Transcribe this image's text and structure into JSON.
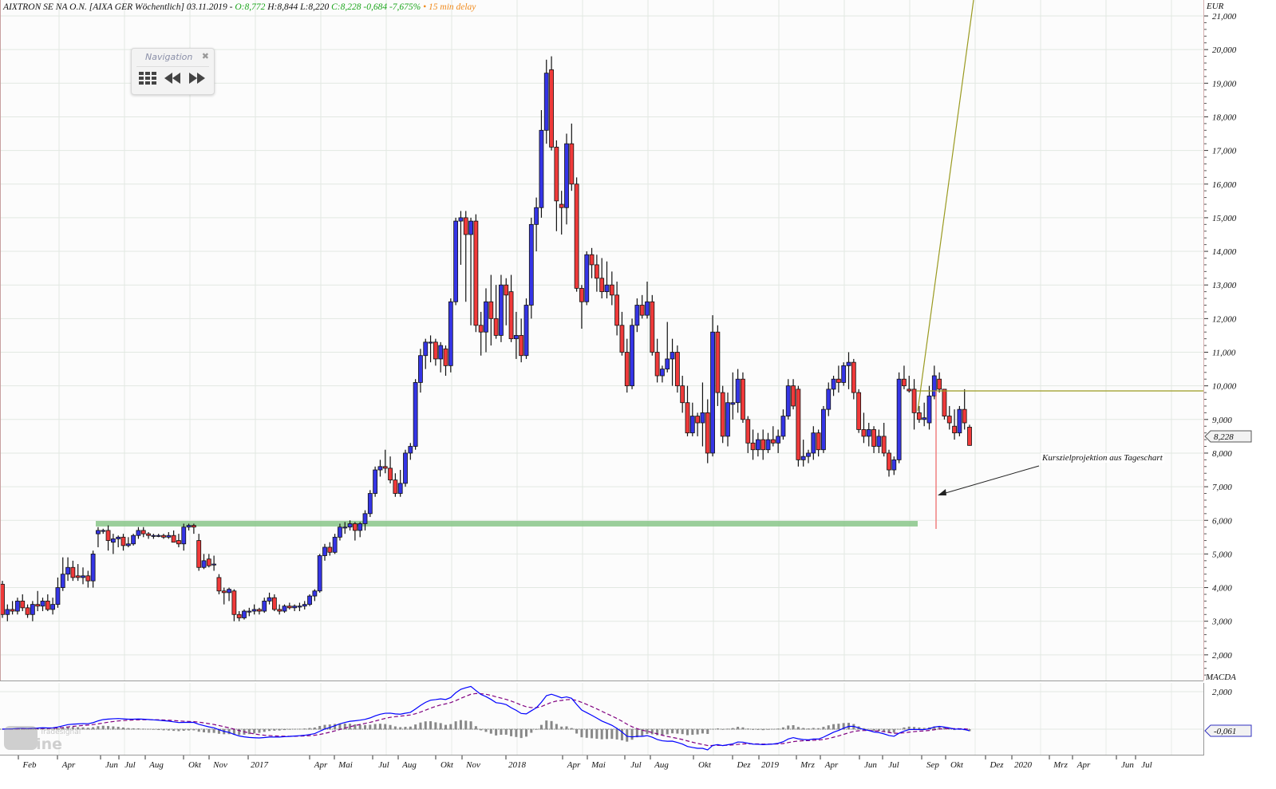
{
  "header": {
    "title": "AIXTRON SE NA O.N. [AIXA GER Wöchentlich] 03.11.2019 -",
    "open": "O:8,772",
    "high": "H:8,844",
    "low": "L:8,220",
    "close": "C:8,228 -0,684 -7,675%",
    "delay": "• 15 min delay"
  },
  "navigation": {
    "title": "Navigation",
    "close_icon": "close-icon",
    "buttons": [
      "grid-icon",
      "rewind-icon",
      "fast-forward-icon"
    ]
  },
  "annotation": "Kurszielprojektion aus Tageschart",
  "watermark": "Tradesignal online",
  "colors": {
    "up": "#3535e6",
    "down": "#f03a3a",
    "support_band": "#8fc98f",
    "trendline": "#9a9a20",
    "projection": "#f08080",
    "macd": "#0000ff",
    "signal": "#800080",
    "histogram": "#888888"
  },
  "chart_data": [
    {
      "type": "candlestick",
      "title": "AIXTRON SE NA O.N. [AIXA GER Wöchentlich]",
      "ylabel": "EUR",
      "ylim": [
        1.1,
        21.4
      ],
      "grid": true,
      "y_ticks": [
        "2,000",
        "3,000",
        "4,000",
        "5,000",
        "6,000",
        "7,000",
        "8,000",
        "9,000",
        "10,000",
        "11,000",
        "12,000",
        "13,000",
        "14,000",
        "15,000",
        "16,000",
        "17,000",
        "18,000",
        "19,000",
        "20,000",
        "21,000"
      ],
      "x_ticks": [
        "Feb",
        "Apr",
        "Jun",
        "Jul",
        "Aug",
        "Okt",
        "Nov",
        "2017",
        "Apr",
        "Mai",
        "Jul",
        "Aug",
        "Okt",
        "Nov",
        "2018",
        "Apr",
        "Mai",
        "Jul",
        "Aug",
        "Okt",
        "Dez",
        "2019",
        "Mrz",
        "Apr",
        "Jun",
        "Jul",
        "Sep",
        "Okt",
        "Dez",
        "2020",
        "Mrz",
        "Apr",
        "Jun",
        "Jul"
      ],
      "last_price_label": "8,228",
      "support_zone": 5.9,
      "resistance_line": 9.85,
      "ohlc": [
        [
          4.1,
          4.2,
          3.1,
          3.2
        ],
        [
          3.2,
          3.5,
          3.0,
          3.35
        ],
        [
          3.35,
          3.6,
          3.2,
          3.3
        ],
        [
          3.3,
          3.7,
          3.2,
          3.6
        ],
        [
          3.6,
          3.8,
          3.3,
          3.4
        ],
        [
          3.4,
          3.5,
          3.1,
          3.2
        ],
        [
          3.2,
          3.6,
          3.0,
          3.5
        ],
        [
          3.5,
          3.9,
          3.3,
          3.45
        ],
        [
          3.45,
          3.7,
          3.3,
          3.6
        ],
        [
          3.6,
          3.8,
          3.3,
          3.35
        ],
        [
          3.35,
          3.7,
          3.2,
          3.5
        ],
        [
          3.5,
          4.3,
          3.4,
          4.0
        ],
        [
          4.0,
          4.9,
          3.9,
          4.4
        ],
        [
          4.4,
          4.9,
          4.2,
          4.6
        ],
        [
          4.6,
          4.8,
          4.2,
          4.3
        ],
        [
          4.35,
          4.7,
          4.2,
          4.3
        ],
        [
          4.3,
          4.6,
          4.1,
          4.35
        ],
        [
          4.35,
          4.5,
          4.0,
          4.2
        ],
        [
          4.2,
          5.1,
          4.0,
          5.0
        ],
        [
          5.6,
          5.8,
          5.2,
          5.7
        ],
        [
          5.7,
          5.75,
          5.6,
          5.7
        ],
        [
          5.7,
          5.85,
          5.1,
          5.4
        ],
        [
          5.35,
          5.6,
          5.0,
          5.45
        ],
        [
          5.45,
          5.55,
          5.2,
          5.5
        ],
        [
          5.5,
          5.6,
          5.1,
          5.25
        ],
        [
          5.25,
          5.5,
          5.2,
          5.3
        ],
        [
          5.3,
          5.6,
          5.25,
          5.55
        ],
        [
          5.55,
          5.8,
          5.45,
          5.7
        ],
        [
          5.7,
          5.8,
          5.5,
          5.6
        ],
        [
          5.6,
          5.65,
          5.45,
          5.55
        ],
        [
          5.55,
          5.6,
          5.45,
          5.55
        ],
        [
          5.55,
          5.6,
          5.5,
          5.55
        ],
        [
          5.55,
          5.6,
          5.45,
          5.5
        ],
        [
          5.5,
          5.65,
          5.45,
          5.55
        ],
        [
          5.55,
          5.7,
          5.35,
          5.35
        ],
        [
          5.4,
          5.6,
          5.2,
          5.3
        ],
        [
          5.3,
          5.9,
          5.1,
          5.8
        ],
        [
          5.8,
          5.9,
          5.7,
          5.85
        ],
        [
          5.85,
          5.9,
          5.6,
          5.8
        ],
        [
          5.4,
          5.6,
          4.5,
          4.6
        ],
        [
          4.6,
          5.0,
          4.55,
          4.8
        ],
        [
          4.85,
          5.0,
          4.6,
          4.65
        ],
        [
          4.7,
          4.95,
          4.5,
          4.7
        ],
        [
          4.3,
          4.4,
          3.8,
          3.9
        ],
        [
          3.9,
          4.0,
          3.5,
          3.85
        ],
        [
          3.85,
          4.0,
          3.6,
          3.95
        ],
        [
          3.9,
          3.95,
          3.0,
          3.2
        ],
        [
          3.2,
          3.3,
          3.0,
          3.1
        ],
        [
          3.1,
          3.35,
          3.05,
          3.3
        ],
        [
          3.3,
          3.4,
          3.15,
          3.3
        ],
        [
          3.3,
          3.5,
          3.2,
          3.35
        ],
        [
          3.35,
          3.4,
          3.2,
          3.3
        ],
        [
          3.3,
          3.7,
          3.25,
          3.6
        ],
        [
          3.6,
          3.85,
          3.5,
          3.7
        ],
        [
          3.7,
          3.8,
          3.3,
          3.35
        ],
        [
          3.35,
          3.5,
          3.2,
          3.3
        ],
        [
          3.3,
          3.5,
          3.25,
          3.45
        ],
        [
          3.45,
          3.55,
          3.35,
          3.4
        ],
        [
          3.4,
          3.5,
          3.3,
          3.45
        ],
        [
          3.45,
          3.55,
          3.3,
          3.45
        ],
        [
          3.45,
          3.6,
          3.35,
          3.5
        ],
        [
          3.5,
          3.8,
          3.45,
          3.75
        ],
        [
          3.75,
          3.95,
          3.6,
          3.9
        ],
        [
          3.9,
          5.0,
          3.85,
          4.95
        ],
        [
          4.95,
          5.3,
          4.8,
          5.2
        ],
        [
          5.2,
          5.35,
          4.95,
          5.05
        ],
        [
          5.05,
          5.6,
          5.0,
          5.5
        ],
        [
          5.5,
          5.9,
          5.4,
          5.8
        ],
        [
          5.8,
          5.95,
          5.6,
          5.8
        ],
        [
          5.8,
          6.0,
          5.7,
          5.9
        ],
        [
          5.9,
          5.95,
          5.4,
          5.7
        ],
        [
          5.7,
          5.95,
          5.5,
          5.9
        ],
        [
          5.9,
          6.3,
          5.7,
          6.2
        ],
        [
          6.2,
          6.9,
          6.1,
          6.8
        ],
        [
          6.8,
          7.6,
          6.7,
          7.5
        ],
        [
          7.5,
          7.8,
          7.3,
          7.6
        ],
        [
          7.6,
          8.1,
          7.4,
          7.55
        ],
        [
          7.55,
          7.9,
          7.1,
          7.2
        ],
        [
          7.2,
          7.4,
          6.7,
          6.8
        ],
        [
          6.8,
          7.5,
          6.7,
          7.1
        ],
        [
          7.1,
          8.1,
          7.0,
          8.0
        ],
        [
          8.0,
          8.3,
          7.8,
          8.2
        ],
        [
          8.2,
          10.2,
          8.1,
          10.1
        ],
        [
          10.1,
          11.1,
          9.8,
          10.9
        ],
        [
          10.9,
          11.4,
          10.5,
          11.3
        ],
        [
          11.3,
          11.5,
          10.7,
          11.3
        ],
        [
          11.3,
          11.4,
          10.6,
          10.8
        ],
        [
          10.8,
          11.3,
          10.4,
          11.2
        ],
        [
          11.1,
          11.2,
          10.3,
          10.6
        ],
        [
          10.6,
          12.6,
          10.4,
          12.5
        ],
        [
          12.5,
          15.0,
          12.4,
          14.9
        ],
        [
          14.9,
          15.2,
          13.6,
          15.0
        ],
        [
          15.0,
          15.2,
          12.5,
          14.5
        ],
        [
          14.5,
          15.0,
          11.8,
          14.9
        ],
        [
          14.9,
          15.1,
          11.6,
          11.8
        ],
        [
          11.8,
          12.2,
          10.9,
          11.6
        ],
        [
          11.6,
          12.9,
          11.0,
          12.5
        ],
        [
          12.5,
          13.3,
          11.2,
          12.0
        ],
        [
          12.0,
          13.0,
          11.4,
          11.5
        ],
        [
          11.5,
          13.3,
          11.3,
          13.0
        ],
        [
          13.0,
          13.2,
          11.8,
          12.7
        ],
        [
          12.8,
          13.3,
          11.3,
          11.4
        ],
        [
          11.4,
          12.2,
          10.8,
          11.5
        ],
        [
          11.5,
          12.0,
          10.7,
          10.9
        ],
        [
          10.9,
          12.6,
          10.8,
          12.4
        ],
        [
          12.4,
          15.0,
          12.0,
          14.8
        ],
        [
          14.8,
          15.6,
          14.0,
          15.3
        ],
        [
          15.3,
          18.2,
          15.0,
          17.6
        ],
        [
          17.6,
          19.7,
          17.2,
          19.3
        ],
        [
          19.4,
          19.8,
          17.0,
          17.1
        ],
        [
          17.1,
          17.3,
          14.6,
          15.5
        ],
        [
          15.4,
          15.8,
          14.5,
          15.3
        ],
        [
          15.3,
          17.5,
          14.8,
          17.2
        ],
        [
          17.2,
          17.8,
          15.8,
          16.0
        ],
        [
          16.0,
          16.2,
          12.8,
          12.9
        ],
        [
          12.9,
          13.0,
          11.7,
          12.5
        ],
        [
          12.5,
          14.0,
          12.4,
          13.9
        ],
        [
          13.9,
          14.1,
          13.2,
          13.6
        ],
        [
          13.6,
          13.9,
          12.8,
          13.2
        ],
        [
          13.2,
          13.8,
          12.6,
          12.8
        ],
        [
          12.8,
          13.7,
          12.6,
          13.0
        ],
        [
          13.0,
          13.4,
          12.4,
          12.7
        ],
        [
          12.7,
          13.1,
          11.5,
          11.8
        ],
        [
          11.8,
          12.2,
          10.9,
          11.0
        ],
        [
          11.0,
          11.4,
          9.8,
          10.0
        ],
        [
          10.0,
          12.0,
          9.9,
          11.8
        ],
        [
          11.8,
          12.6,
          11.6,
          12.4
        ],
        [
          12.4,
          12.7,
          12.0,
          12.1
        ],
        [
          12.1,
          13.1,
          12.0,
          12.5
        ],
        [
          12.5,
          12.7,
          10.9,
          11.0
        ],
        [
          11.0,
          11.4,
          10.1,
          10.3
        ],
        [
          10.3,
          10.6,
          10.1,
          10.5
        ],
        [
          10.5,
          11.9,
          10.4,
          10.8
        ],
        [
          10.8,
          11.4,
          10.0,
          11.0
        ],
        [
          11.0,
          11.2,
          9.8,
          10.0
        ],
        [
          10.0,
          10.3,
          9.2,
          9.5
        ],
        [
          9.5,
          10.0,
          8.5,
          8.6
        ],
        [
          8.6,
          9.5,
          8.5,
          9.1
        ],
        [
          9.1,
          9.2,
          8.5,
          8.9
        ],
        [
          8.9,
          10.1,
          8.2,
          9.2
        ],
        [
          9.2,
          9.6,
          7.7,
          8.0
        ],
        [
          8.0,
          12.1,
          7.9,
          11.6
        ],
        [
          11.6,
          11.8,
          9.4,
          9.8
        ],
        [
          9.8,
          10.0,
          8.3,
          8.5
        ],
        [
          8.5,
          9.8,
          8.2,
          9.5
        ],
        [
          9.45,
          10.4,
          9.0,
          9.5
        ],
        [
          9.5,
          10.5,
          9.2,
          10.2
        ],
        [
          10.2,
          10.4,
          8.9,
          9.0
        ],
        [
          9.0,
          9.1,
          8.0,
          8.3
        ],
        [
          8.3,
          8.7,
          7.8,
          8.1
        ],
        [
          8.1,
          8.6,
          7.9,
          8.4
        ],
        [
          8.4,
          8.7,
          7.8,
          8.1
        ],
        [
          8.1,
          8.6,
          8.0,
          8.4
        ],
        [
          8.4,
          8.8,
          8.2,
          8.3
        ],
        [
          8.3,
          8.7,
          8.0,
          8.5
        ],
        [
          8.5,
          9.3,
          8.4,
          9.1
        ],
        [
          9.1,
          10.2,
          9.0,
          10.0
        ],
        [
          10.0,
          10.2,
          9.3,
          9.4
        ],
        [
          9.9,
          10.0,
          7.6,
          7.8
        ],
        [
          7.8,
          8.4,
          7.6,
          7.9
        ],
        [
          7.9,
          8.1,
          7.7,
          8.0
        ],
        [
          8.0,
          8.8,
          7.8,
          8.6
        ],
        [
          8.6,
          8.7,
          7.9,
          8.1
        ],
        [
          8.1,
          9.4,
          8.0,
          9.3
        ],
        [
          9.3,
          10.1,
          9.1,
          9.9
        ],
        [
          9.9,
          10.3,
          9.7,
          10.2
        ],
        [
          10.2,
          10.6,
          9.8,
          10.1
        ],
        [
          10.1,
          10.7,
          10.0,
          10.6
        ],
        [
          10.6,
          11.0,
          9.9,
          10.7
        ],
        [
          10.7,
          10.8,
          9.6,
          9.8
        ],
        [
          9.8,
          9.9,
          8.6,
          8.7
        ],
        [
          8.7,
          9.2,
          8.3,
          8.5
        ],
        [
          8.5,
          8.9,
          8.2,
          8.7
        ],
        [
          8.7,
          8.8,
          8.0,
          8.2
        ],
        [
          8.2,
          8.7,
          8.0,
          8.5
        ],
        [
          8.5,
          8.9,
          7.9,
          8.0
        ],
        [
          8.0,
          8.1,
          7.3,
          7.5
        ],
        [
          7.5,
          7.9,
          7.35,
          7.8
        ],
        [
          7.8,
          10.4,
          7.7,
          10.2
        ],
        [
          10.2,
          10.6,
          9.9,
          10.0
        ],
        [
          9.9,
          10.3,
          9.8,
          9.85
        ],
        [
          9.9,
          10.2,
          8.7,
          9.2
        ],
        [
          9.2,
          9.4,
          8.9,
          9.0
        ],
        [
          9.0,
          9.5,
          8.8,
          9.05
        ],
        [
          8.9,
          10.0,
          8.7,
          9.7
        ],
        [
          9.7,
          10.6,
          9.6,
          10.3
        ],
        [
          10.2,
          10.4,
          9.8,
          9.9
        ],
        [
          9.9,
          9.9,
          9.0,
          9.1
        ],
        [
          9.1,
          9.4,
          8.7,
          8.9
        ],
        [
          8.8,
          9.3,
          8.4,
          8.6
        ],
        [
          8.6,
          9.4,
          8.5,
          9.3
        ],
        [
          9.3,
          9.9,
          8.7,
          8.9
        ],
        [
          8.772,
          8.844,
          8.22,
          8.228
        ]
      ]
    },
    {
      "type": "line",
      "title": "MACDA",
      "y_ticks": [
        "2,000"
      ],
      "last_value_label": "-0,061",
      "series": [
        "MACD",
        "Signal",
        "Histogram"
      ]
    }
  ]
}
